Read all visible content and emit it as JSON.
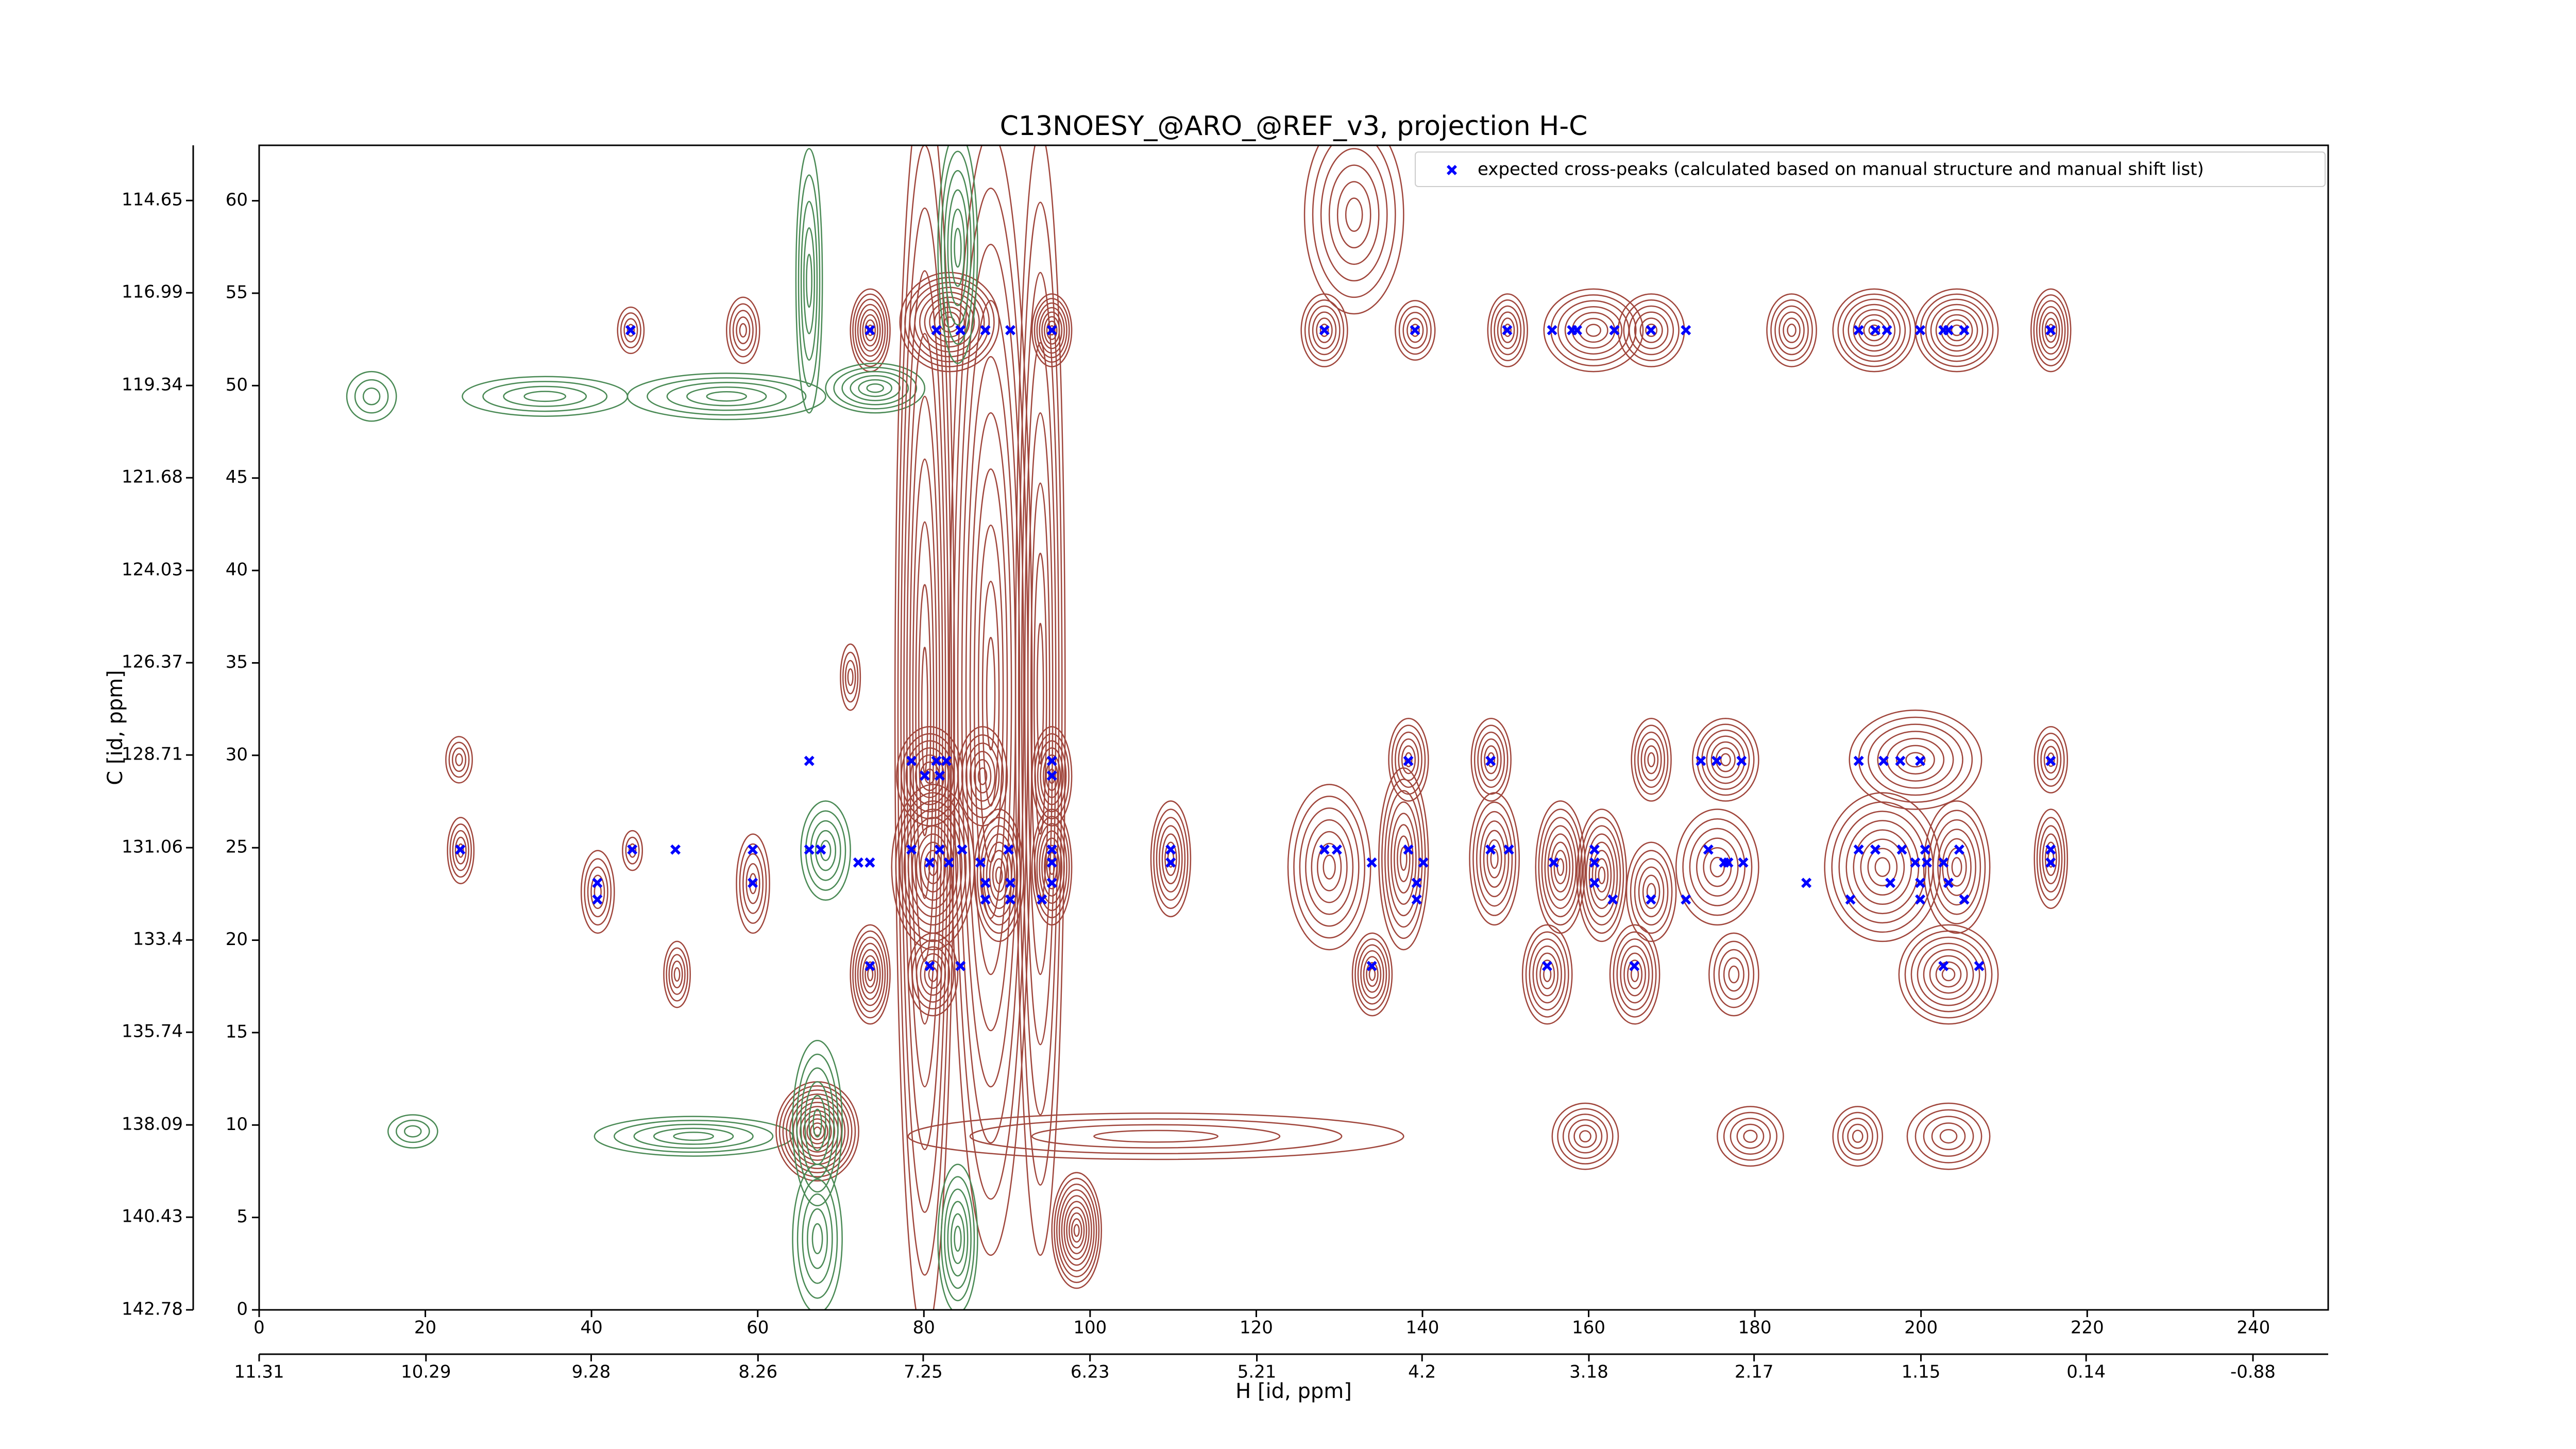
{
  "chart_data": {
    "type": "scatter",
    "title": "C13NOESY_@ARO_@REF_v3, projection H-C",
    "x_label": "H [id, ppm]",
    "y_label": "C [id, ppm]",
    "xlim": [
      0,
      249
    ],
    "xticks": [
      0,
      20,
      40,
      60,
      80,
      100,
      120,
      140,
      160,
      180,
      200,
      220,
      240
    ],
    "x2lim": [
      11.31,
      -1.34
    ],
    "x2ticks": [
      11.31,
      10.29,
      9.28,
      8.26,
      7.25,
      6.23,
      5.21,
      4.2,
      3.18,
      2.17,
      1.15,
      0.14,
      -0.88
    ],
    "ylim": [
      0,
      63
    ],
    "yticks": [
      0,
      5,
      10,
      15,
      20,
      25,
      30,
      35,
      40,
      45,
      50,
      55,
      60
    ],
    "y2lim": [
      142.78,
      113.25
    ],
    "y2ticks": [
      142.78,
      140.43,
      138.09,
      135.74,
      133.4,
      131.06,
      128.71,
      126.37,
      124.03,
      121.68,
      119.34,
      116.99,
      114.65
    ],
    "legend": "upper right",
    "x": [
      44.7,
      73.5,
      81.5,
      84.4,
      87.4,
      90.4,
      95.4,
      128.2,
      139.1,
      150.2,
      155.6,
      158.0,
      158.6,
      163.1,
      167.5,
      171.7,
      192.5,
      194.5,
      195.9,
      199.9,
      202.7,
      203.3,
      205.2,
      215.6,
      66.2,
      78.5,
      81.5,
      82.7,
      95.4,
      138.3,
      148.2,
      173.5,
      175.4,
      178.4,
      192.5,
      195.5,
      197.5,
      199.9,
      215.6,
      80.1,
      81.9,
      95.4,
      24.2,
      44.9,
      50.1,
      59.4,
      66.2,
      67.6,
      78.5,
      81.9,
      84.6,
      90.2,
      95.4,
      109.7,
      128.2,
      129.7,
      138.3,
      148.2,
      150.4,
      160.7,
      174.4,
      192.5,
      194.5,
      197.7,
      200.5,
      204.6,
      215.6,
      72.1,
      73.5,
      80.7,
      83.0,
      86.8,
      95.4,
      109.7,
      133.9,
      140.1,
      155.8,
      160.7,
      176.3,
      176.8,
      178.6,
      199.3,
      200.7,
      202.7,
      215.6,
      40.7,
      59.4,
      87.4,
      90.4,
      95.4,
      139.3,
      160.7,
      186.2,
      196.3,
      199.9,
      203.3,
      40.7,
      87.4,
      90.4,
      94.2,
      139.3,
      162.9,
      167.5,
      171.7,
      191.5,
      199.9,
      205.2,
      73.5,
      80.7,
      84.4,
      133.9,
      155.0,
      165.5,
      202.7,
      207.0
    ],
    "series": [
      {
        "name": "expected cross-peaks (calculated based on manual structure and manual shift list)",
        "color": "#0000ff",
        "values": [
          53.0,
          53.0,
          53.0,
          53.0,
          53.0,
          53.0,
          53.0,
          53.0,
          53.0,
          53.0,
          53.0,
          53.0,
          53.0,
          53.0,
          53.0,
          53.0,
          53.0,
          53.0,
          53.0,
          53.0,
          53.0,
          53.0,
          53.0,
          53.0,
          29.7,
          29.7,
          29.7,
          29.7,
          29.7,
          29.7,
          29.7,
          29.7,
          29.7,
          29.7,
          29.7,
          29.7,
          29.7,
          29.7,
          29.7,
          28.9,
          28.9,
          28.9,
          24.9,
          24.9,
          24.9,
          24.9,
          24.9,
          24.9,
          24.9,
          24.9,
          24.9,
          24.9,
          24.9,
          24.9,
          24.9,
          24.9,
          24.9,
          24.9,
          24.9,
          24.9,
          24.9,
          24.9,
          24.9,
          24.9,
          24.9,
          24.9,
          24.9,
          24.2,
          24.2,
          24.2,
          24.2,
          24.2,
          24.2,
          24.2,
          24.2,
          24.2,
          24.2,
          24.2,
          24.2,
          24.2,
          24.2,
          24.2,
          24.2,
          24.2,
          24.2,
          23.1,
          23.1,
          23.1,
          23.1,
          23.1,
          23.1,
          23.1,
          23.1,
          23.1,
          23.1,
          23.1,
          22.2,
          22.2,
          22.2,
          22.2,
          22.2,
          22.2,
          22.2,
          22.2,
          22.2,
          22.2,
          22.2,
          18.6,
          18.6,
          18.6,
          18.6,
          18.6,
          18.6,
          18.6,
          18.6
        ]
      }
    ]
  }
}
